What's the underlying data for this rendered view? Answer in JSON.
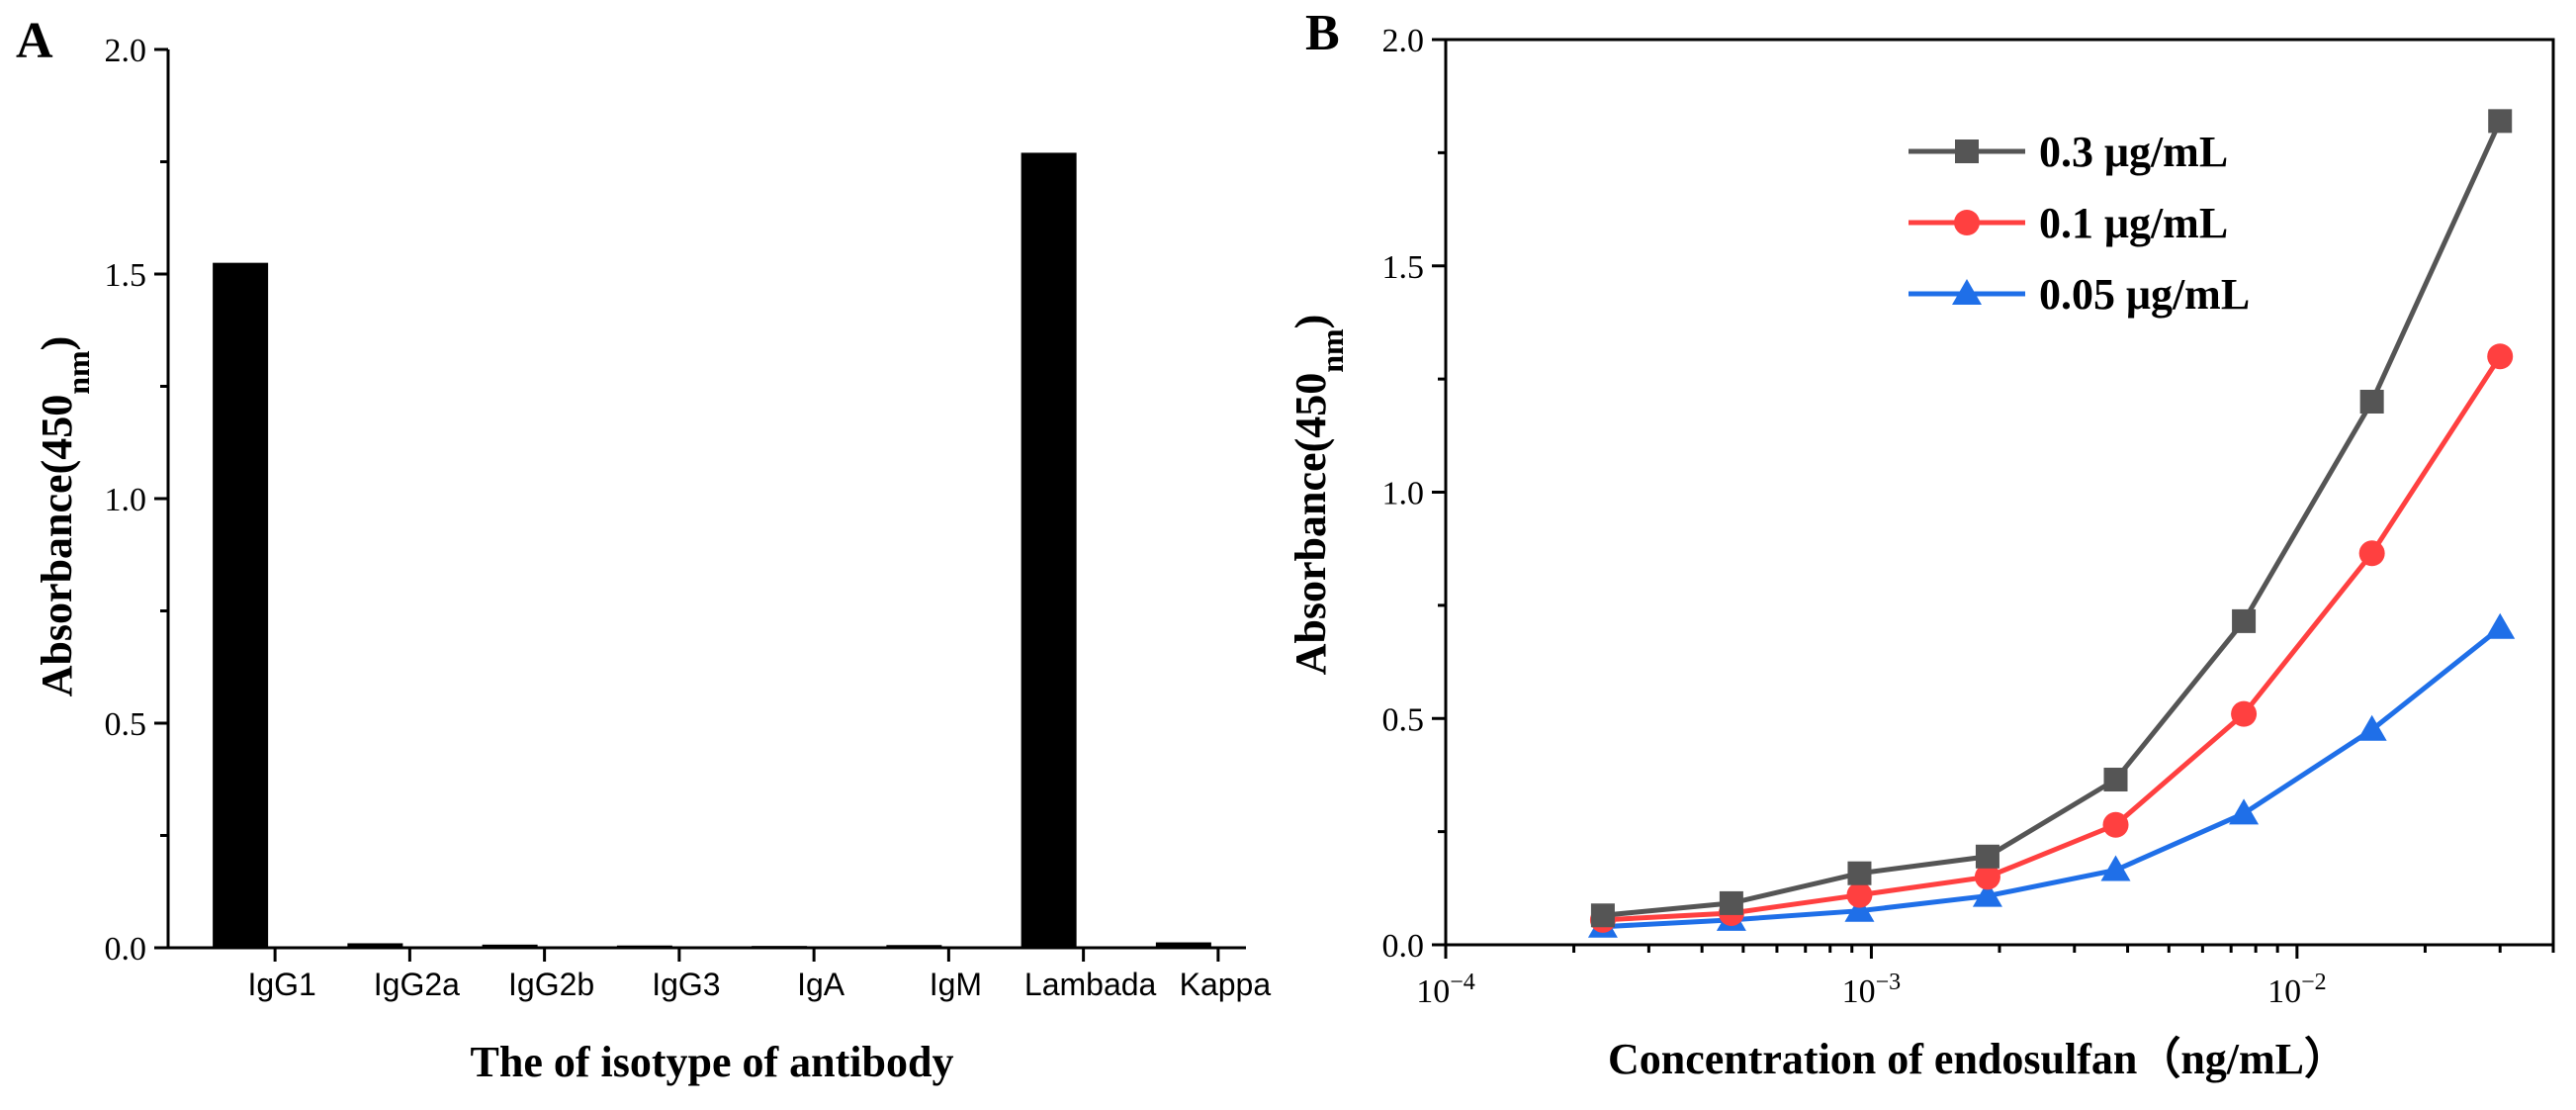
{
  "chart_data": [
    {
      "panel": "A",
      "type": "bar",
      "title": "",
      "categories": [
        "IgG1",
        "IgG2a",
        "IgG2b",
        "IgG3",
        "IgA",
        "IgM",
        "Lambada",
        "Kappa"
      ],
      "values": [
        1.525,
        0.01,
        0.007,
        0.005,
        0.004,
        0.006,
        1.77,
        0.012
      ],
      "ylim": [
        0,
        2.0
      ],
      "yticks": [
        0.0,
        0.5,
        1.0,
        1.5,
        2.0
      ],
      "ytick_labels": [
        "0.0",
        "0.5",
        "1.0",
        "1.5",
        "2.0"
      ],
      "xlabel": "The of isotype of antibody",
      "ylabel_main": "Absorbance(450",
      "ylabel_sub": "nm",
      "ylabel_close": ")",
      "bar_color": "#000000"
    },
    {
      "panel": "B",
      "type": "line",
      "x_scale": "log",
      "x": [
        0.000234,
        0.000469,
        0.000938,
        0.001875,
        0.00375,
        0.0075,
        0.015,
        0.03
      ],
      "series": [
        {
          "name": "0.3 μg/mL",
          "color": "#555555",
          "marker": "square",
          "values": [
            0.065,
            0.092,
            0.158,
            0.195,
            0.365,
            0.715,
            1.2,
            1.82
          ]
        },
        {
          "name": "0.1 μg/mL",
          "color": "#ff4040",
          "marker": "circle",
          "values": [
            0.055,
            0.07,
            0.11,
            0.15,
            0.265,
            0.51,
            0.865,
            1.3
          ]
        },
        {
          "name": "0.05 μg/mL",
          "color": "#1f6fe8",
          "marker": "triangle",
          "values": [
            0.04,
            0.055,
            0.075,
            0.108,
            0.165,
            0.29,
            0.475,
            0.7
          ]
        }
      ],
      "xlim": [
        0.0001,
        0.04
      ],
      "ylim": [
        0,
        2.0
      ],
      "xticks": [
        0.0001,
        0.001,
        0.01
      ],
      "xtick_base": "10",
      "xtick_exponents": [
        "−4",
        "−3",
        "−2"
      ],
      "yticks": [
        0.0,
        0.5,
        1.0,
        1.5,
        2.0
      ],
      "ytick_labels": [
        "0.0",
        "0.5",
        "1.0",
        "1.5",
        "2.0"
      ],
      "xlabel": "Concentration of endosulfan（ng/mL）",
      "ylabel_main": "Absorbance(450",
      "ylabel_sub": "nm",
      "ylabel_close": ")",
      "legend_position": "top-left"
    }
  ]
}
